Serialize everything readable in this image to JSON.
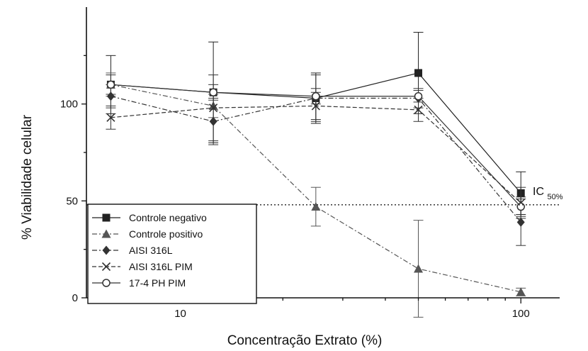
{
  "chart_data": {
    "type": "line",
    "x_scale": "log",
    "xlabel": "Concentração Extrato (%)",
    "ylabel": "% Viabilidade celular",
    "xlim": [
      5.3,
      130
    ],
    "ylim": [
      0,
      150
    ],
    "x_ticks": [
      10,
      100
    ],
    "x_tick_labels": [
      "10",
      "100"
    ],
    "y_ticks": [
      0,
      50,
      100
    ],
    "y_tick_labels": [
      "0",
      "50",
      "100"
    ],
    "grid": false,
    "legend_position": "bottom-left",
    "x": [
      6.25,
      12.5,
      25,
      50,
      100
    ],
    "series": [
      {
        "name": "Controle negativo",
        "marker": "square",
        "dash": "solid",
        "color": "#222222",
        "values": [
          110,
          106,
          103,
          116,
          54
        ],
        "err": [
          15,
          26,
          13,
          21,
          11
        ]
      },
      {
        "name": "Controle positivo",
        "marker": "triangle",
        "dash": "dashdot",
        "color": "#555555",
        "values": [
          110,
          99,
          47,
          15,
          3
        ],
        "err": [
          6,
          6,
          10,
          25,
          2
        ]
      },
      {
        "name": "AISI 316L",
        "marker": "diamond",
        "dash": "dashdot",
        "color": "#333333",
        "values": [
          104,
          91,
          103,
          103,
          39
        ],
        "err": [
          6,
          12,
          12,
          5,
          12
        ]
      },
      {
        "name": "AISI 316L PIM",
        "marker": "x",
        "dash": "dashed",
        "color": "#333333",
        "values": [
          93,
          98,
          99,
          97,
          49
        ],
        "err": [
          6,
          17,
          7,
          6,
          8
        ]
      },
      {
        "name": "17-4 PH PIM",
        "marker": "circle",
        "dash": "solid",
        "color": "#333333",
        "values": [
          110,
          106,
          104,
          104,
          47
        ],
        "err": [
          5,
          4,
          4,
          3,
          5
        ]
      }
    ],
    "reference_line": {
      "y": 48,
      "label_main": "IC",
      "label_sub": "50%",
      "style": "dotted"
    }
  }
}
